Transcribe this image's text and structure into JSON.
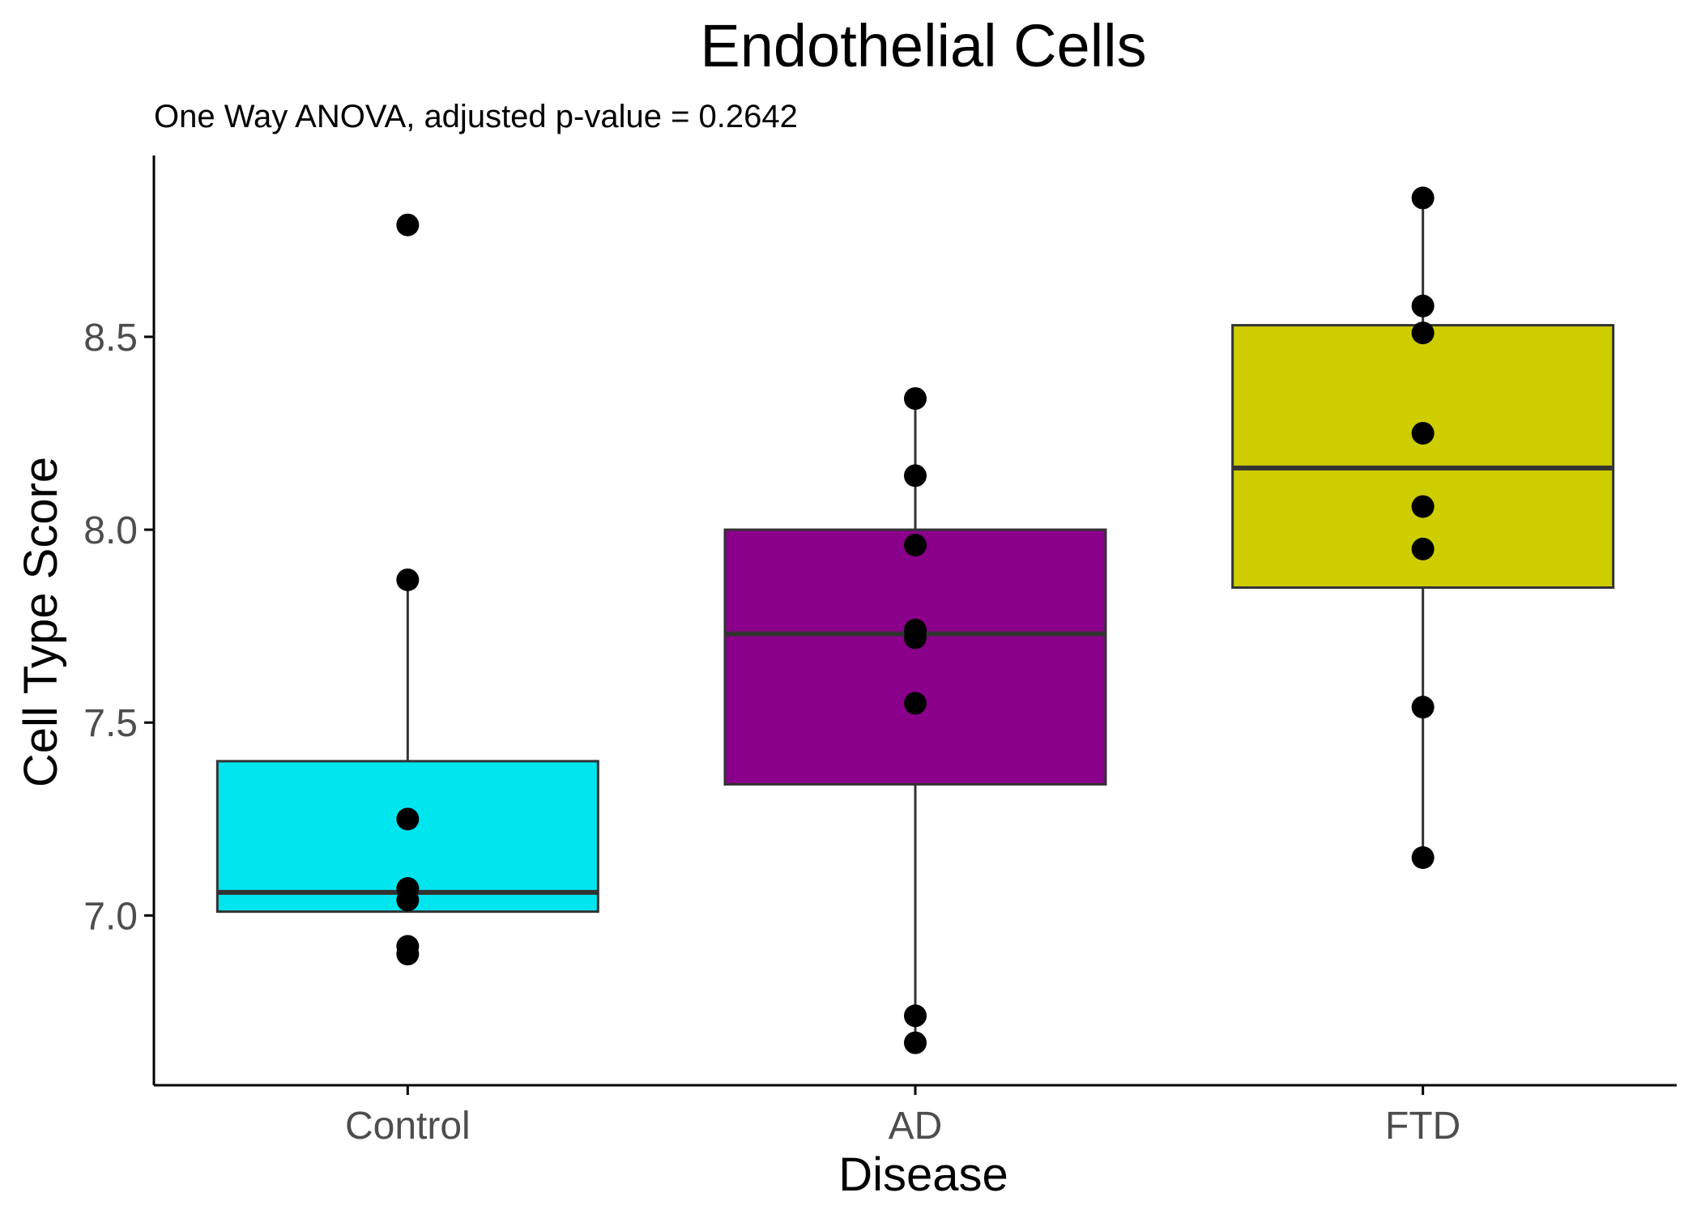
{
  "colors": {
    "box_outline": "#333333",
    "points": "#000000",
    "axis": "#000000",
    "tick_text": "#4d4d4d"
  },
  "chart_data": {
    "type": "box",
    "title": "Endothelial Cells",
    "subtitle": "One Way ANOVA, adjusted p-value = 0.2642",
    "xlabel": "Disease",
    "ylabel": "Cell Type Score",
    "ylim": [
      6.56,
      8.97
    ],
    "yticks": [
      7.0,
      7.5,
      8.0,
      8.5
    ],
    "ytick_labels": [
      "7.0",
      "7.5",
      "8.0",
      "8.5"
    ],
    "grid": false,
    "legend": "none",
    "categories": [
      "Control",
      "AD",
      "FTD"
    ],
    "groups": [
      {
        "name": "Control",
        "color": "#00e5ee",
        "q1": 7.01,
        "median": 7.06,
        "q3": 7.4,
        "whisker_low": 7.01,
        "whisker_high": 7.87,
        "points": [
          8.79,
          7.87,
          7.25,
          7.07,
          7.04,
          6.92,
          6.9
        ]
      },
      {
        "name": "AD",
        "color": "#8b008b",
        "q1": 7.34,
        "median": 7.73,
        "q3": 8.0,
        "whisker_low": 6.67,
        "whisker_high": 8.34,
        "points": [
          8.34,
          8.14,
          7.96,
          7.74,
          7.72,
          7.55,
          6.74,
          6.67
        ]
      },
      {
        "name": "FTD",
        "color": "#cdcd00",
        "q1": 7.85,
        "median": 8.16,
        "q3": 8.53,
        "whisker_low": 7.15,
        "whisker_high": 8.86,
        "points": [
          8.86,
          8.58,
          8.51,
          8.25,
          8.06,
          7.95,
          7.54,
          7.15
        ]
      }
    ]
  }
}
